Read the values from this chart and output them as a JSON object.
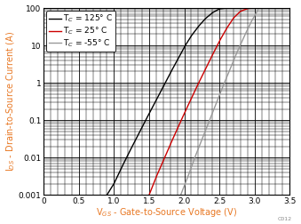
{
  "title": "",
  "xlabel": "V$_{GS}$ - Gate-to-Source Voltage (V)",
  "ylabel": "I$_{DS}$ - Drain-to-Source Current (A)",
  "xlim": [
    0,
    3.5
  ],
  "ylim": [
    0.001,
    100
  ],
  "xticks": [
    0,
    0.5,
    1.0,
    1.5,
    2.0,
    2.5,
    3.0,
    3.5
  ],
  "yticks": [
    0.001,
    0.01,
    0.1,
    1,
    10,
    100
  ],
  "ytick_labels": [
    "0.001",
    "0.01",
    "0.1",
    "1",
    "10",
    "100"
  ],
  "legend": [
    {
      "label": "T$_C$ = 125° C",
      "color": "#000000"
    },
    {
      "label": "T$_C$ = 25° C",
      "color": "#cc0000"
    },
    {
      "label": "T$_C$ = -55° C",
      "color": "#999999"
    }
  ],
  "curves": {
    "T125": {
      "color": "#000000",
      "vgs": [
        0.9,
        1.0,
        1.1,
        1.2,
        1.3,
        1.4,
        1.5,
        1.6,
        1.7,
        1.8,
        1.9,
        2.0,
        2.1,
        2.2,
        2.3,
        2.4,
        2.5,
        2.6,
        2.7,
        2.75,
        2.8
      ],
      "ids": [
        0.001,
        0.002,
        0.005,
        0.012,
        0.028,
        0.065,
        0.15,
        0.34,
        0.78,
        1.8,
        4.0,
        9.0,
        18.0,
        32.0,
        52.0,
        75.0,
        95.0,
        100.0,
        100.0,
        100.0,
        100.0
      ]
    },
    "T25": {
      "color": "#cc0000",
      "vgs": [
        1.5,
        1.6,
        1.7,
        1.8,
        1.9,
        2.0,
        2.1,
        2.2,
        2.3,
        2.4,
        2.5,
        2.6,
        2.7,
        2.8,
        2.9,
        3.0
      ],
      "ids": [
        0.001,
        0.003,
        0.008,
        0.022,
        0.058,
        0.15,
        0.38,
        0.95,
        2.3,
        5.5,
        13.0,
        28.0,
        54.0,
        82.0,
        97.0,
        100.0
      ]
    },
    "Tm55": {
      "color": "#999999",
      "vgs": [
        1.95,
        2.05,
        2.15,
        2.25,
        2.35,
        2.45,
        2.55,
        2.65,
        2.75,
        2.85,
        2.95,
        3.05
      ],
      "ids": [
        0.001,
        0.003,
        0.01,
        0.03,
        0.09,
        0.27,
        0.8,
        2.3,
        6.5,
        17.0,
        42.0,
        90.0
      ]
    }
  },
  "watermark": "C012",
  "axis_label_color": "#e87722",
  "axis_label_fontsize": 7.0,
  "tick_fontsize": 6.5,
  "legend_fontsize": 6.5,
  "linewidth": 1.0
}
